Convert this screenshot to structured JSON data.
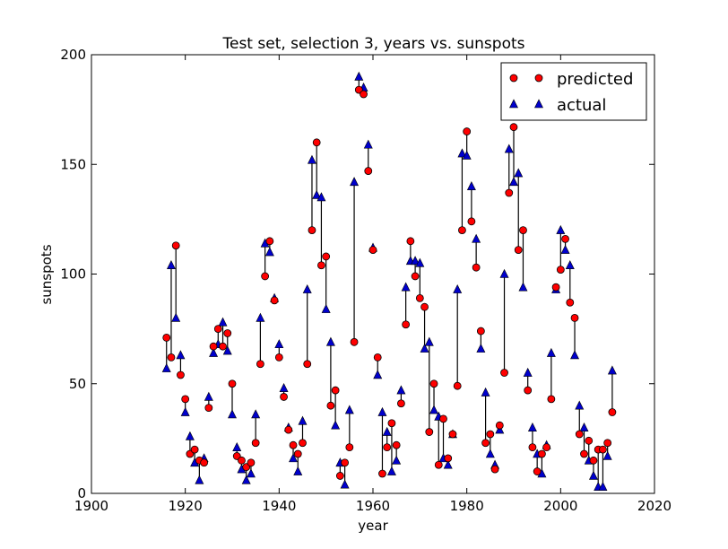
{
  "chart_data": {
    "type": "scatter",
    "title": "Test set, selection 3, years vs. sunspots",
    "xlabel": "year",
    "ylabel": "sunspots",
    "xlim": [
      1900,
      2020
    ],
    "ylim": [
      0,
      200
    ],
    "xticks": [
      1900,
      1920,
      1940,
      1960,
      1980,
      2000,
      2020
    ],
    "yticks": [
      0,
      50,
      100,
      150,
      200
    ],
    "legend": {
      "position": "top-right",
      "entries": [
        "predicted",
        "actual"
      ]
    },
    "colors": {
      "predicted": "#ff0000",
      "actual": "#0000cc",
      "line": "#000000"
    },
    "series": [
      {
        "name": "predicted",
        "marker": "circle"
      },
      {
        "name": "actual",
        "marker": "triangle"
      }
    ],
    "x": [
      1916,
      1917,
      1918,
      1919,
      1920,
      1921,
      1922,
      1923,
      1924,
      1925,
      1926,
      1927,
      1928,
      1929,
      1930,
      1931,
      1932,
      1933,
      1934,
      1935,
      1936,
      1937,
      1938,
      1939,
      1940,
      1941,
      1942,
      1943,
      1944,
      1945,
      1946,
      1947,
      1948,
      1949,
      1950,
      1951,
      1952,
      1953,
      1954,
      1955,
      1956,
      1957,
      1958,
      1959,
      1960,
      1961,
      1962,
      1963,
      1964,
      1965,
      1966,
      1967,
      1968,
      1969,
      1970,
      1971,
      1972,
      1973,
      1974,
      1975,
      1976,
      1977,
      1978,
      1979,
      1980,
      1981,
      1982,
      1983,
      1984,
      1985,
      1986,
      1987,
      1988,
      1989,
      1990,
      1991,
      1992,
      1993,
      1994,
      1995,
      1996,
      1997,
      1998,
      1999,
      2000,
      2001,
      2002,
      2003,
      2004,
      2005,
      2006,
      2007,
      2008,
      2009,
      2010,
      2011
    ],
    "predicted": [
      71,
      62,
      113,
      54,
      43,
      18,
      20,
      15,
      14,
      39,
      67,
      75,
      67,
      73,
      50,
      17,
      15,
      12,
      14,
      23,
      59,
      99,
      115,
      88,
      62,
      44,
      29,
      22,
      18,
      23,
      59,
      120,
      160,
      104,
      108,
      40,
      47,
      8,
      14,
      21,
      69,
      184,
      182,
      147,
      111,
      62,
      9,
      21,
      32,
      22,
      41,
      77,
      115,
      99,
      89,
      85,
      28,
      50,
      13,
      34,
      16,
      27,
      49,
      120,
      165,
      124,
      103,
      74,
      23,
      27,
      11,
      31,
      55,
      137,
      167,
      111,
      120,
      47,
      21,
      10,
      18,
      21,
      43,
      94,
      102,
      116,
      87,
      80,
      27,
      18,
      24,
      15,
      20,
      20,
      23,
      37
    ],
    "actual": [
      57,
      104,
      80,
      63,
      37,
      26,
      14,
      6,
      16,
      44,
      64,
      68,
      78,
      65,
      36,
      21,
      11,
      6,
      9,
      36,
      80,
      114,
      110,
      89,
      68,
      48,
      30,
      16,
      10,
      33,
      93,
      152,
      136,
      135,
      84,
      69,
      31,
      14,
      4,
      38,
      142,
      190,
      185,
      159,
      112,
      54,
      37,
      28,
      10,
      15,
      47,
      94,
      106,
      106,
      105,
      66,
      69,
      38,
      35,
      16,
      13,
      27,
      93,
      155,
      154,
      140,
      116,
      66,
      46,
      18,
      13,
      29,
      100,
      157,
      142,
      146,
      94,
      55,
      30,
      18,
      9,
      22,
      64,
      93,
      120,
      111,
      104,
      63,
      40,
      30,
      15,
      8,
      3,
      3,
      17,
      56
    ]
  }
}
